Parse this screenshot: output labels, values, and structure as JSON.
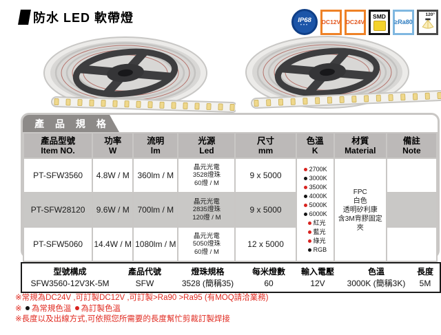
{
  "page": {
    "title": "防水 LED 軟帶燈"
  },
  "badges": {
    "ip68": "IP68",
    "dc12v": "DC12V",
    "dc24v": "DC24V",
    "smd": "SMD",
    "ra80": "≥Ra80",
    "beam_angle": "120°"
  },
  "colors": {
    "note_red": "#e02a20",
    "badge_orange": "#ee8126",
    "badge_blue": "#1c55a8",
    "ra80_blue": "#2d7cc0",
    "smd_yellow": "#f5d32b",
    "tab_gray": "#8d8a88",
    "panel_gray": "#c9c7c5"
  },
  "spec_section": {
    "heading": "產 品 規 格",
    "columns": [
      {
        "zh": "產品型號",
        "en": "Item NO."
      },
      {
        "zh": "功率",
        "en": "W"
      },
      {
        "zh": "流明",
        "en": "lm"
      },
      {
        "zh": "光源",
        "en": "Led"
      },
      {
        "zh": "尺寸",
        "en": "mm"
      },
      {
        "zh": "色溫",
        "en": "K"
      },
      {
        "zh": "材質",
        "en": "Material"
      },
      {
        "zh": "備註",
        "en": "Note"
      }
    ],
    "rows": [
      {
        "item_no": "PT-SFW3560",
        "power": "4.8W / M",
        "lumen": "360lm / M",
        "led": [
          "晶元光電",
          "3528燈珠",
          "60燈 / M"
        ],
        "size": "9 x 5000",
        "note": ""
      },
      {
        "item_no": "PT-SFW28120",
        "power": "9.6W / M",
        "lumen": "700lm / M",
        "led": [
          "晶元光電",
          "2835燈珠",
          "120燈 / M"
        ],
        "size": "9 x 5000",
        "note": ""
      },
      {
        "item_no": "PT-SFW5060",
        "power": "14.4W / M",
        "lumen": "1080lm / M",
        "led": [
          "晶元光電",
          "5050燈珠",
          "60燈 / M"
        ],
        "size": "12 x 5000",
        "note": ""
      }
    ],
    "color_temp_options": [
      {
        "label": "2700K",
        "bullet": "red",
        "indent": false
      },
      {
        "label": "3000K",
        "bullet": "black",
        "indent": false
      },
      {
        "label": "3500K",
        "bullet": "red",
        "indent": false
      },
      {
        "label": "4000K",
        "bullet": "black",
        "indent": false
      },
      {
        "label": "5000K",
        "bullet": "red",
        "indent": false
      },
      {
        "label": "6000K",
        "bullet": "black",
        "indent": false
      },
      {
        "label": "紅光",
        "bullet": "red",
        "indent": true
      },
      {
        "label": "藍光",
        "bullet": "red",
        "indent": true
      },
      {
        "label": "綠光",
        "bullet": "red",
        "indent": true
      },
      {
        "label": "RGB",
        "bullet": "black",
        "indent": true
      }
    ],
    "material_lines": [
      "FPC",
      "白色",
      "透明矽利康",
      "含3M背膠固定夾"
    ],
    "bullet_colors": {
      "red": "#d8231f",
      "black": "#141414"
    }
  },
  "model_table": {
    "headers": [
      "型號構成",
      "產品代號",
      "燈珠規格",
      "每米燈數",
      "輸入電壓",
      "色溫",
      "長度"
    ],
    "values": [
      "SFW3560-12V3K-5M",
      "SFW",
      "3528 (簡稱35)",
      "60",
      "12V",
      "3000K (簡稱3K)",
      "5M"
    ]
  },
  "notes": [
    [
      {
        "t": "※常規為DC24V ,可訂製DC12V ,可訂製>Ra90  >Ra95  (有MOQ請洽業務)"
      }
    ],
    [
      {
        "t": "※ "
      },
      {
        "b": "black"
      },
      {
        "t": "為常規色溫  "
      },
      {
        "b": "red"
      },
      {
        "t": "為訂製色溫"
      }
    ],
    [
      {
        "t": "※長度以及出線方式,可依照您所需要的長度幫忙剪裁訂製焊接"
      }
    ]
  ]
}
